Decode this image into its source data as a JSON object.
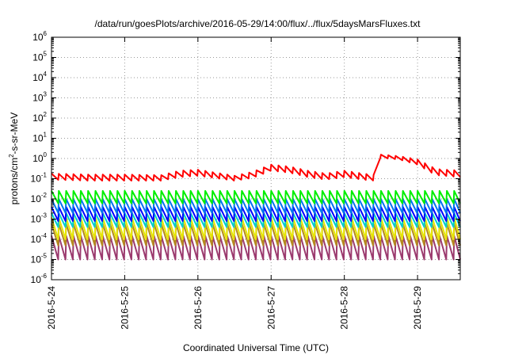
{
  "chart_data": {
    "type": "line",
    "title": "/data/run/goesPlots/archive/2016-05-29/14:00/flux/../flux/5daysMarsFluxes.txt",
    "xlabel": "Coordinated Universal Time (UTC)",
    "ylabel": {
      "prefix": "protons/cm",
      "sup": "2",
      "suffix": "-s-sr-MeV"
    },
    "yscale": "log",
    "ylim": [
      1e-06,
      1000000.0
    ],
    "xlim": [
      "2016-05-24 00:00",
      "2016-05-29 14:00"
    ],
    "grid": true,
    "x_ticks": [
      "2016-5-24",
      "2016-5-25",
      "2016-5-26",
      "2016-5-27",
      "2016-5-28",
      "2016-5-29"
    ],
    "y_ticks": [
      {
        "base": "10",
        "exp": "-6"
      },
      {
        "base": "10",
        "exp": "-5"
      },
      {
        "base": "10",
        "exp": "-4"
      },
      {
        "base": "10",
        "exp": "-3"
      },
      {
        "base": "10",
        "exp": "-2"
      },
      {
        "base": "10",
        "exp": "-1"
      },
      {
        "base": "10",
        "exp": "0"
      },
      {
        "base": "10",
        "exp": "1"
      },
      {
        "base": "10",
        "exp": "2"
      },
      {
        "base": "10",
        "exp": "3"
      },
      {
        "base": "10",
        "exp": "4"
      },
      {
        "base": "10",
        "exp": "5"
      },
      {
        "base": "10",
        "exp": "6"
      }
    ],
    "sawtooth_period_days": 0.1,
    "series": [
      {
        "color": "#ff0000",
        "x": [
          "2016-05-24 00:00",
          "2016-05-24 12:00",
          "2016-05-25 00:00",
          "2016-05-25 12:00",
          "2016-05-25 18:00",
          "2016-05-26 00:00",
          "2016-05-26 12:00",
          "2016-05-26 18:00",
          "2016-05-27 00:00",
          "2016-05-27 06:00",
          "2016-05-27 12:00",
          "2016-05-27 18:00",
          "2016-05-28 00:00",
          "2016-05-28 06:00",
          "2016-05-28 10:00",
          "2016-05-28 11:00",
          "2016-05-28 18:00",
          "2016-05-29 00:00",
          "2016-05-29 06:00",
          "2016-05-29 14:00"
        ],
        "peak": [
          0.18,
          0.16,
          0.16,
          0.15,
          0.25,
          0.28,
          0.14,
          0.22,
          0.5,
          0.4,
          0.25,
          0.18,
          0.25,
          0.18,
          0.15,
          1.6,
          1.3,
          0.9,
          0.3,
          0.25
        ],
        "trough": [
          0.09,
          0.08,
          0.08,
          0.08,
          0.12,
          0.14,
          0.08,
          0.11,
          0.25,
          0.2,
          0.12,
          0.09,
          0.12,
          0.09,
          0.08,
          1.1,
          0.9,
          0.5,
          0.15,
          0.12
        ]
      },
      {
        "color": "#00ee00",
        "x": [
          "2016-05-24 00:00",
          "2016-05-29 14:00"
        ],
        "peak": [
          0.025,
          0.025
        ],
        "trough": [
          0.006,
          0.006
        ]
      },
      {
        "color": "#0077ee",
        "x": [
          "2016-05-24 00:00",
          "2016-05-29 14:00"
        ],
        "peak": [
          0.01,
          0.01
        ],
        "trough": [
          0.002,
          0.002
        ]
      },
      {
        "color": "#0000ff",
        "x": [
          "2016-05-24 00:00",
          "2016-05-29 14:00"
        ],
        "peak": [
          0.004,
          0.004
        ],
        "trough": [
          0.0008,
          0.0008
        ]
      },
      {
        "color": "#00cccc",
        "x": [
          "2016-05-24 00:00",
          "2016-05-29 14:00"
        ],
        "peak": [
          0.002,
          0.002
        ],
        "trough": [
          0.0004,
          0.0004
        ]
      },
      {
        "color": "#e6e600",
        "x": [
          "2016-05-24 00:00",
          "2016-05-29 14:00"
        ],
        "peak": [
          0.0012,
          0.0012
        ],
        "trough": [
          0.0001,
          0.0001
        ]
      },
      {
        "color": "#b58a1e",
        "x": [
          "2016-05-24 00:00",
          "2016-05-29 14:00"
        ],
        "peak": [
          0.0006,
          0.0006
        ],
        "trough": [
          5e-05,
          5e-05
        ]
      },
      {
        "color": "#9b3a6e",
        "x": [
          "2016-05-24 00:00",
          "2016-05-29 14:00"
        ],
        "peak": [
          0.00015,
          0.00015
        ],
        "trough": [
          1e-05,
          1e-05
        ]
      }
    ]
  }
}
